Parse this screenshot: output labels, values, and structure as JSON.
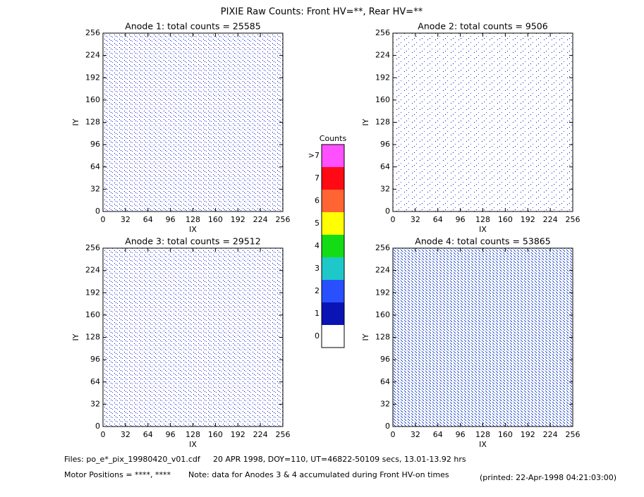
{
  "title": "PIXIE Raw Counts:  Front HV=**, Rear HV=**",
  "chart_data": [
    {
      "type": "heatmap",
      "title": "Anode 1: total counts = 25585",
      "xlabel": "IX",
      "ylabel": "IY",
      "xlim": [
        0,
        256
      ],
      "ylim": [
        0,
        256
      ],
      "xticks": [
        0,
        32,
        64,
        96,
        128,
        160,
        192,
        224,
        256
      ],
      "yticks": [
        0,
        32,
        64,
        96,
        128,
        160,
        192,
        224,
        256
      ]
    },
    {
      "type": "heatmap",
      "title": "Anode 2: total counts = 9506",
      "xlabel": "IX",
      "ylabel": "IY",
      "xlim": [
        0,
        256
      ],
      "ylim": [
        0,
        256
      ],
      "xticks": [
        0,
        32,
        64,
        96,
        128,
        160,
        192,
        224,
        256
      ],
      "yticks": [
        0,
        32,
        64,
        96,
        128,
        160,
        192,
        224,
        256
      ]
    },
    {
      "type": "heatmap",
      "title": "Anode 3: total counts = 29512",
      "xlabel": "IX",
      "ylabel": "IY",
      "xlim": [
        0,
        256
      ],
      "ylim": [
        0,
        256
      ],
      "xticks": [
        0,
        32,
        64,
        96,
        128,
        160,
        192,
        224,
        256
      ],
      "yticks": [
        0,
        32,
        64,
        96,
        128,
        160,
        192,
        224,
        256
      ]
    },
    {
      "type": "heatmap",
      "title": "Anode 4: total counts = 53865",
      "xlabel": "IX",
      "ylabel": "IY",
      "xlim": [
        0,
        256
      ],
      "ylim": [
        0,
        256
      ],
      "xticks": [
        0,
        32,
        64,
        96,
        128,
        160,
        192,
        224,
        256
      ],
      "yticks": [
        0,
        32,
        64,
        96,
        128,
        160,
        192,
        224,
        256
      ]
    }
  ],
  "colorbar": {
    "title": "Counts",
    "labels": [
      "0",
      "1",
      "2",
      "3",
      "4",
      "5",
      "6",
      "7",
      ">7"
    ],
    "colors": [
      "#ffffff",
      "#0a14b4",
      "#2850ff",
      "#1ec8c8",
      "#14dc14",
      "#ffff00",
      "#ff6432",
      "#ff0a14",
      "#ff50ff"
    ]
  },
  "footer": {
    "files": "Files: po_e*_pix_19980420_v01.cdf",
    "date": "20 APR 1998, DOY=110, UT=46822-50109 secs, 13.01-13.92 hrs",
    "motor": "Motor Positions = ****, ****",
    "note": "Note: data for Anodes 3 & 4 accumulated during Front HV-on times",
    "printed": "(printed: 22-Apr-1998 04:21:03:00)"
  }
}
